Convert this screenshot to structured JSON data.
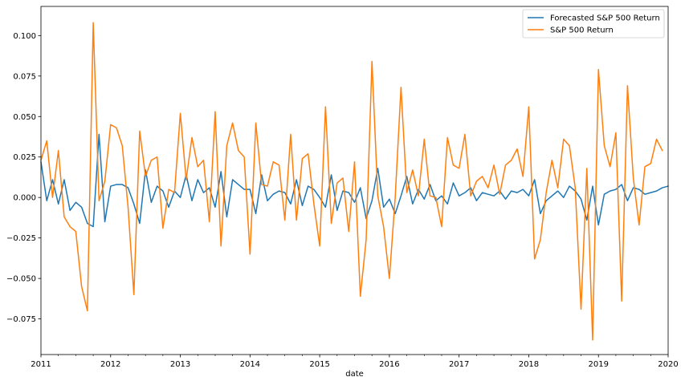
{
  "chart_data": {
    "type": "line",
    "xlabel": "date",
    "ylabel": "",
    "title": "",
    "x_start": "2011-01",
    "x_step": "monthly",
    "xlim": [
      "2011-01",
      "2020-01"
    ],
    "ylim": [
      -0.097,
      0.118
    ],
    "x_ticks": [
      "2011",
      "2012",
      "2013",
      "2014",
      "2015",
      "2016",
      "2017",
      "2018",
      "2019",
      "2020"
    ],
    "y_ticks": [
      -0.075,
      -0.05,
      -0.025,
      0.0,
      0.025,
      0.05,
      0.075,
      0.1
    ],
    "y_tick_labels": [
      "−0.075",
      "−0.050",
      "−0.025",
      "0.000",
      "0.025",
      "0.050",
      "0.075",
      "0.100"
    ],
    "legend_position": "top-right",
    "grid": false,
    "series": [
      {
        "name": "Forecasted S&P 500 Return",
        "color": "#1f77b4",
        "values": [
          0.022,
          -0.002,
          0.011,
          -0.004,
          0.011,
          -0.008,
          -0.003,
          -0.006,
          -0.016,
          -0.018,
          0.039,
          -0.015,
          0.007,
          0.008,
          0.008,
          0.006,
          -0.004,
          -0.016,
          0.017,
          -0.003,
          0.007,
          0.004,
          -0.006,
          0.004,
          0.0,
          0.014,
          -0.002,
          0.011,
          0.003,
          0.006,
          -0.006,
          0.016,
          -0.012,
          0.011,
          0.008,
          0.005,
          0.005,
          -0.01,
          0.014,
          -0.002,
          0.002,
          0.004,
          0.003,
          -0.004,
          0.011,
          -0.005,
          0.007,
          0.005,
          0.0,
          -0.006,
          0.014,
          -0.008,
          0.004,
          0.003,
          -0.003,
          0.006,
          -0.013,
          -0.002,
          0.018,
          -0.006,
          -0.001,
          -0.01,
          0.001,
          0.013,
          -0.004,
          0.005,
          -0.001,
          0.008,
          -0.002,
          0.001,
          -0.004,
          0.009,
          0.001,
          0.003,
          0.006,
          -0.002,
          0.003,
          0.002,
          0.001,
          0.004,
          -0.001,
          0.004,
          0.003,
          0.005,
          0.001,
          0.011,
          -0.01,
          -0.002,
          0.001,
          0.004,
          0.0,
          0.007,
          0.004,
          -0.001,
          -0.014,
          0.007,
          -0.017,
          0.002,
          0.004,
          0.005,
          0.008,
          -0.002,
          0.006,
          0.005,
          0.002,
          0.003,
          0.004,
          0.006,
          0.007
        ]
      },
      {
        "name": "S&P 500 Return",
        "color": "#ff7f0e",
        "values": [
          0.023,
          0.035,
          0.0,
          0.029,
          -0.012,
          -0.018,
          -0.021,
          -0.055,
          -0.07,
          0.108,
          -0.002,
          0.01,
          0.045,
          0.043,
          0.032,
          -0.006,
          -0.06,
          0.041,
          0.013,
          0.023,
          0.025,
          -0.019,
          0.005,
          0.003,
          0.052,
          0.011,
          0.037,
          0.019,
          0.023,
          -0.015,
          0.053,
          -0.03,
          0.032,
          0.046,
          0.029,
          0.025,
          -0.035,
          0.046,
          0.008,
          0.007,
          0.022,
          0.02,
          -0.014,
          0.039,
          -0.014,
          0.024,
          0.027,
          -0.004,
          -0.03,
          0.056,
          -0.016,
          0.009,
          0.012,
          -0.021,
          0.022,
          -0.061,
          -0.026,
          0.084,
          0.001,
          -0.018,
          -0.05,
          0.0,
          0.068,
          0.003,
          0.017,
          0.001,
          0.036,
          0.001,
          0.0,
          -0.018,
          0.037,
          0.02,
          0.018,
          0.039,
          0.001,
          0.01,
          0.013,
          0.006,
          0.02,
          0.002,
          0.02,
          0.023,
          0.03,
          0.013,
          0.056,
          -0.038,
          -0.026,
          0.003,
          0.023,
          0.006,
          0.036,
          0.032,
          0.006,
          -0.069,
          0.018,
          -0.088,
          0.079,
          0.032,
          0.019,
          0.04,
          -0.064,
          0.069,
          0.012,
          -0.017,
          0.019,
          0.021,
          0.036,
          0.029
        ]
      }
    ]
  }
}
